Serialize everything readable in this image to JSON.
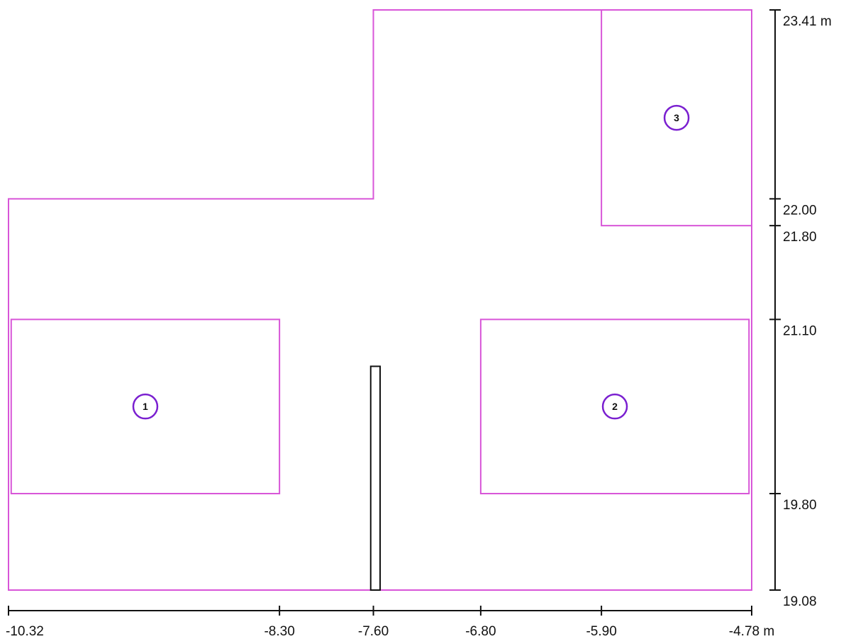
{
  "colors": {
    "room_outline": "#d855d8",
    "marker_circle": "#7a1fd0",
    "partition": "#111111",
    "dimension_line": "#111111"
  },
  "x_axis": {
    "ticks": [
      {
        "value": -10.32,
        "label": "-10.32"
      },
      {
        "value": -8.3,
        "label": "-8.30"
      },
      {
        "value": -7.6,
        "label": "-7.60"
      },
      {
        "value": -6.8,
        "label": "-6.80"
      },
      {
        "value": -5.9,
        "label": "-5.90"
      },
      {
        "value": -4.78,
        "label": "-4.78 m"
      }
    ]
  },
  "y_axis": {
    "ticks": [
      {
        "value": 23.41,
        "label": "23.41 m"
      },
      {
        "value": 22.0,
        "label": "22.00"
      },
      {
        "value": 21.8,
        "label": "21.80"
      },
      {
        "value": 21.1,
        "label": "21.10"
      },
      {
        "value": 19.8,
        "label": "19.80"
      },
      {
        "value": 19.08,
        "label": "19.08"
      }
    ]
  },
  "outline": [
    [
      -10.32,
      19.08
    ],
    [
      -4.78,
      19.08
    ],
    [
      -4.78,
      23.41
    ],
    [
      -7.6,
      23.41
    ],
    [
      -7.6,
      22.0
    ],
    [
      -10.32,
      22.0
    ]
  ],
  "zones": [
    {
      "id": "zone-1",
      "label": "1",
      "x1": -10.3,
      "y1": 19.8,
      "x2": -8.3,
      "y2": 21.1
    },
    {
      "id": "zone-2",
      "label": "2",
      "x1": -6.8,
      "y1": 19.8,
      "x2": -4.8,
      "y2": 21.1
    },
    {
      "id": "zone-3",
      "label": "3",
      "x1": -5.9,
      "y1": 21.8,
      "x2": -4.78,
      "y2": 23.41
    }
  ],
  "partition": {
    "x1": -7.62,
    "y1": 19.08,
    "x2": -7.55,
    "y2": 20.75
  }
}
